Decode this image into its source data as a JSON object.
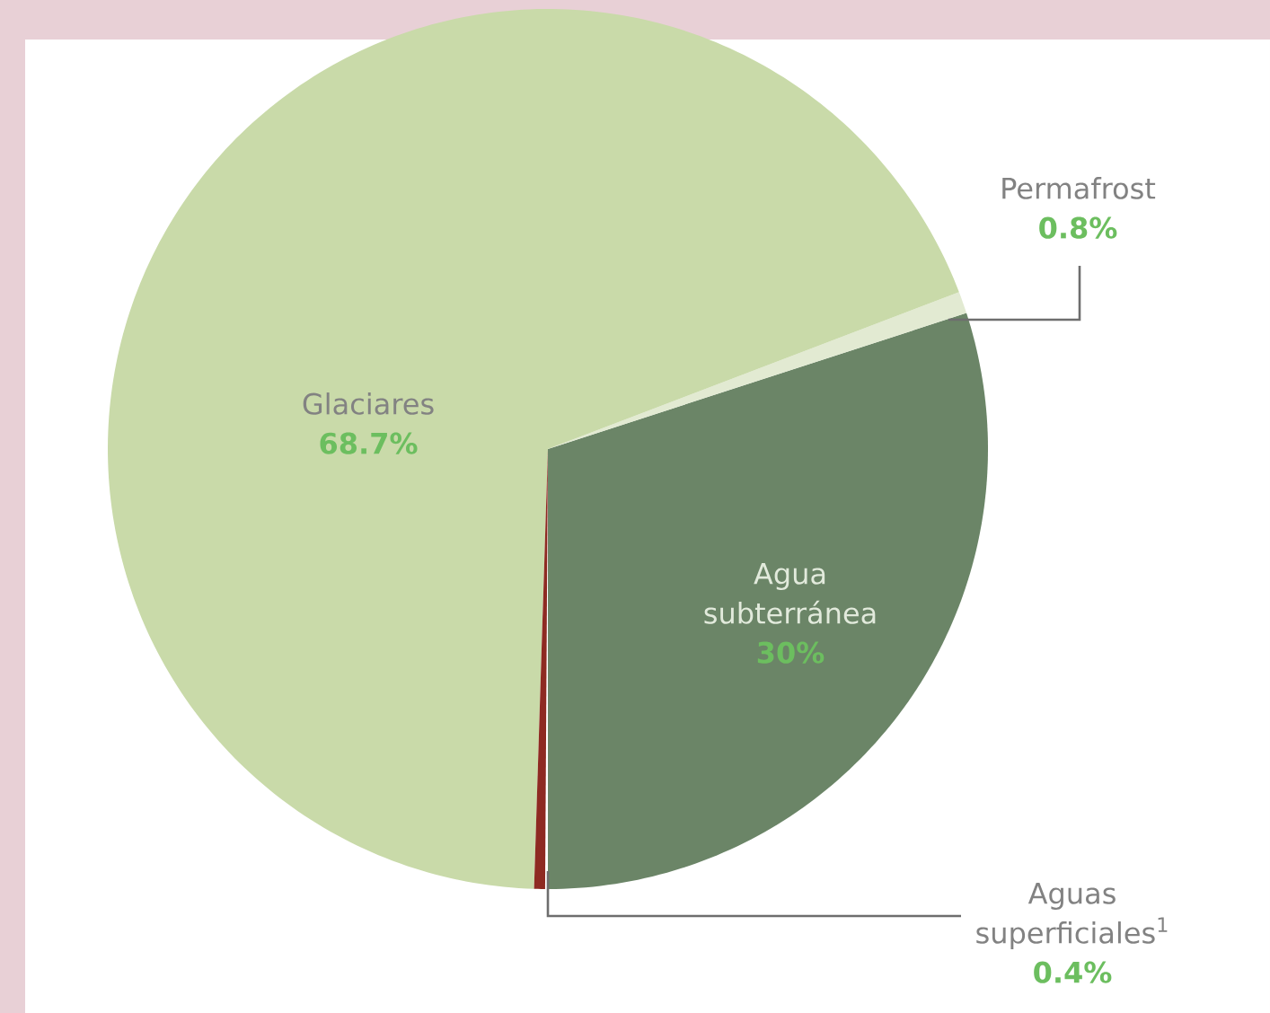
{
  "chart_data": {
    "type": "pie",
    "categories": [
      "Agua subterránea",
      "Permafrost",
      "Glaciares",
      "Aguas superficiales$^{1}$"
    ],
    "values": [
      30,
      0.8,
      68.7,
      0.4
    ],
    "colors": [
      "#6b8567",
      "#e2ead2",
      "#c9daa9",
      "#8e2a22"
    ],
    "value_labels": [
      "30%",
      "0.8%",
      "68.7%",
      "0.4%"
    ]
  }
}
